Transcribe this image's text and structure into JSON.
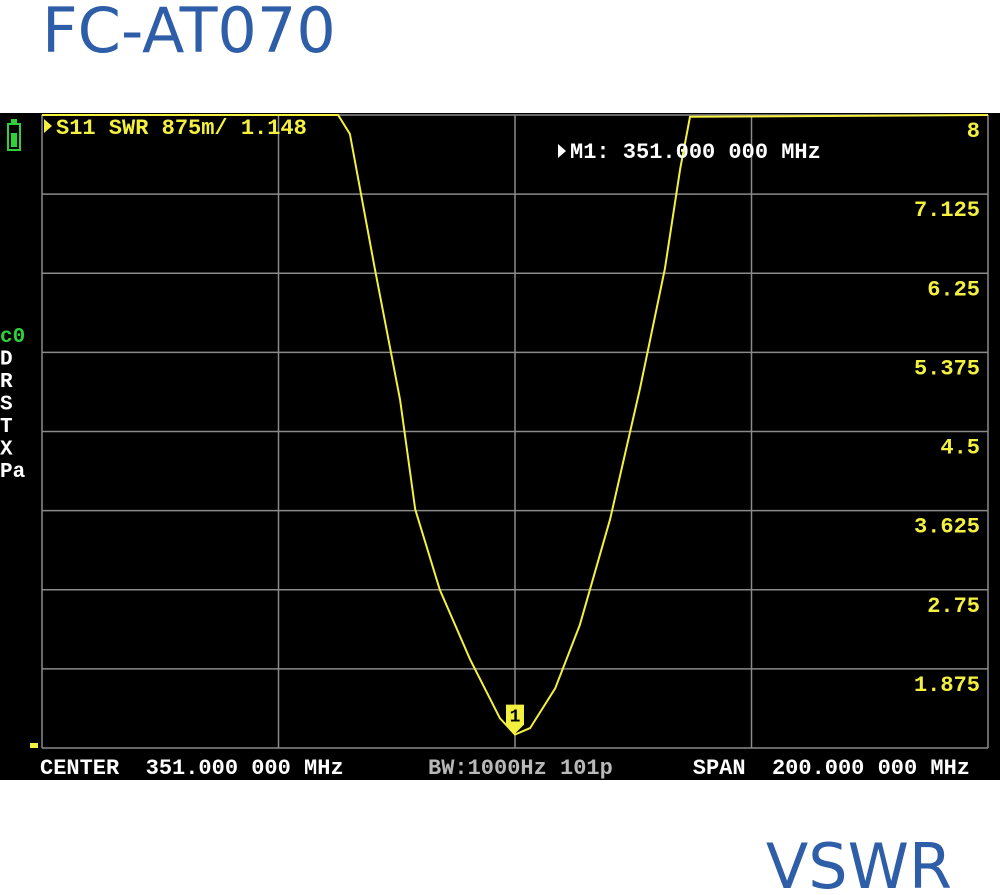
{
  "title": "FC-AT070",
  "caption": "VSWR",
  "chart_data": {
    "type": "line",
    "trace_label": "S11 SWR 875m/ 1.148",
    "marker_label": "M1: 351.000 000 MHz",
    "marker": {
      "label": "1",
      "x": 351,
      "y": 1.148
    },
    "center_label": "CENTER  351.000 000 MHz",
    "bw_label": "BW:1000Hz 101p",
    "span_label": "SPAN  200.000 000 MHz",
    "side_labels": [
      "c0",
      "D",
      "R",
      "S",
      "T",
      "X",
      "Pa"
    ],
    "x": [
      251,
      313.6,
      316.1,
      321.4,
      326.7,
      329.9,
      335.1,
      341.5,
      347.8,
      351,
      354.2,
      359.5,
      364.7,
      371.1,
      377.4,
      382.7,
      385.9,
      388,
      451
    ],
    "values": [
      8,
      8,
      7.79,
      6.29,
      4.85,
      3.64,
      2.75,
      1.98,
      1.33,
      1.148,
      1.22,
      1.66,
      2.36,
      3.53,
      4.97,
      6.3,
      7.4,
      7.98,
      8
    ],
    "color": "#f4f040",
    "xlim": [
      251,
      451
    ],
    "ylim": [
      1,
      8
    ],
    "yticks": [
      8,
      7.125,
      6.25,
      5.375,
      4.5,
      3.625,
      2.75,
      1.875
    ],
    "grid": true
  }
}
